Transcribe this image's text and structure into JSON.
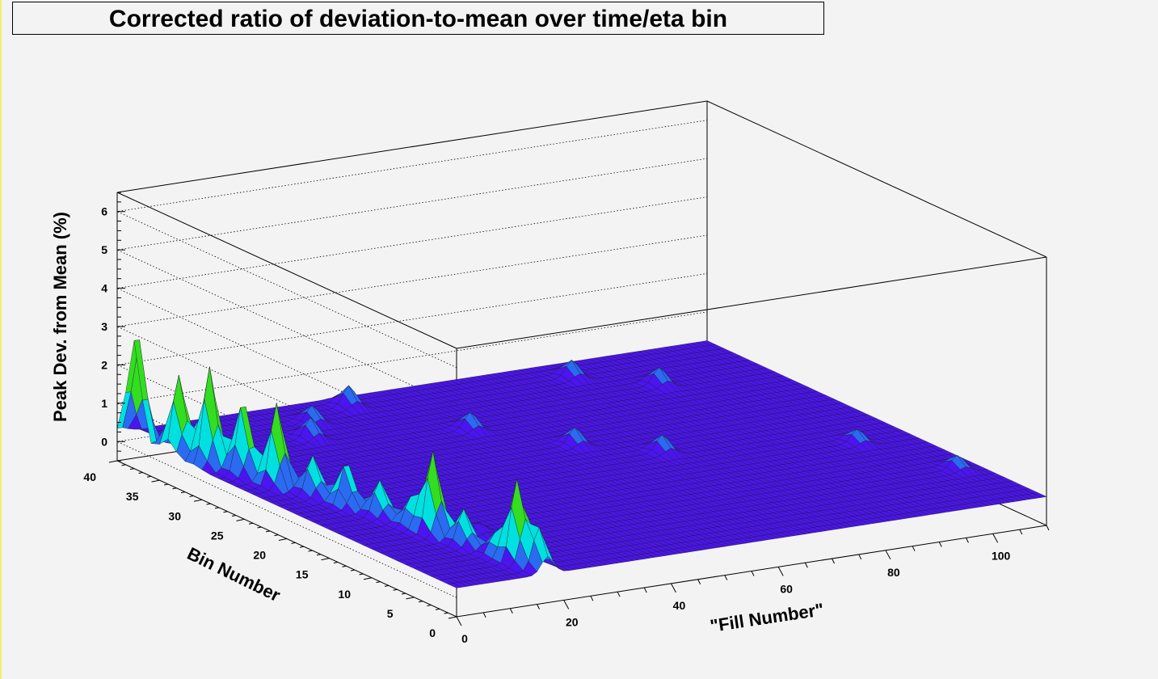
{
  "chart_data": {
    "type": "surface",
    "title": "Corrected ratio of deviation-to-mean over time/eta bin",
    "xlabel": "\"Fill Number\"",
    "ylabel": "Bin Number",
    "zlabel": "Peak Dev. from Mean (%)",
    "xlim": [
      0,
      110
    ],
    "ylim": [
      0,
      40
    ],
    "zlim": [
      -0.5,
      6.5
    ],
    "x_ticks": [
      "0",
      "20",
      "40",
      "60",
      "80",
      "100"
    ],
    "y_ticks": [
      "0",
      "5",
      "10",
      "15",
      "20",
      "25",
      "30",
      "35",
      "40"
    ],
    "z_ticks": [
      "0",
      "1",
      "2",
      "3",
      "4",
      "5",
      "6"
    ],
    "baseline_value": 0.25,
    "peaks": [
      {
        "x": 0.5,
        "y": 38,
        "z": 3.1
      },
      {
        "x": 2,
        "y": 34,
        "z": 2.3
      },
      {
        "x": 3,
        "y": 31,
        "z": 2.8
      },
      {
        "x": 4.5,
        "y": 28,
        "z": 2.2
      },
      {
        "x": 6,
        "y": 25,
        "z": 2.4
      },
      {
        "x": 8,
        "y": 22,
        "z": 1.3
      },
      {
        "x": 9.5,
        "y": 19,
        "z": 1.4
      },
      {
        "x": 11,
        "y": 16,
        "z": 1.2
      },
      {
        "x": 12,
        "y": 13,
        "z": 1.0
      },
      {
        "x": 13,
        "y": 11,
        "z": 2.4
      },
      {
        "x": 14,
        "y": 8,
        "z": 1.2
      },
      {
        "x": 15,
        "y": 5,
        "z": 0.8
      },
      {
        "x": 16,
        "y": 3,
        "z": 2.4
      },
      {
        "x": 17,
        "y": 1,
        "z": 1.3
      },
      {
        "x": 20,
        "y": 10,
        "z": 0.5
      },
      {
        "x": 25,
        "y": 33,
        "z": 0.8
      },
      {
        "x": 30,
        "y": 36,
        "z": 0.7
      },
      {
        "x": 40,
        "y": 38,
        "z": 0.8
      },
      {
        "x": 50,
        "y": 30,
        "z": 0.7
      },
      {
        "x": 60,
        "y": 24,
        "z": 0.7
      },
      {
        "x": 70,
        "y": 20,
        "z": 0.7
      },
      {
        "x": 80,
        "y": 37,
        "z": 0.7
      },
      {
        "x": 90,
        "y": 33,
        "z": 0.7
      },
      {
        "x": 100,
        "y": 16,
        "z": 0.6
      },
      {
        "x": 106,
        "y": 8,
        "z": 0.6
      }
    ],
    "colors": {
      "base": "#4b14f0",
      "low": "#2a6bf2",
      "mid": "#00e0e0",
      "high": "#33dd22",
      "peak": "#f4f01a",
      "max": "#d61a0e"
    },
    "grid": true
  }
}
